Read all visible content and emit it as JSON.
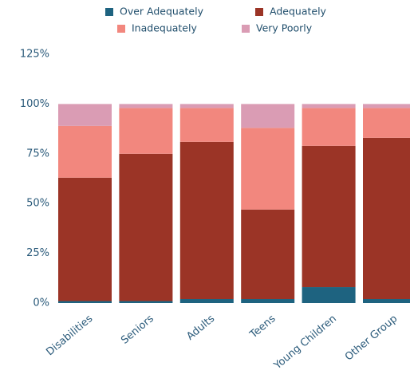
{
  "chart_data": {
    "type": "stacked-bar",
    "categories": [
      "Disabilities",
      "Seniors",
      "Adults",
      "Teens",
      "Young Children",
      "Other Group"
    ],
    "series": [
      {
        "name": "Over Adequately",
        "color": "#1e6380",
        "values": [
          1,
          1,
          2,
          2,
          8,
          2
        ]
      },
      {
        "name": "Adequately",
        "color": "#9b3426",
        "values": [
          62,
          74,
          79,
          45,
          71,
          81
        ]
      },
      {
        "name": "Inadequately",
        "color": "#f2877e",
        "values": [
          26,
          23,
          17,
          41,
          19,
          15
        ]
      },
      {
        "name": "Very Poorly",
        "color": "#da9cb4",
        "values": [
          11,
          2,
          2,
          12,
          2,
          2
        ]
      }
    ],
    "ylim": [
      0,
      125
    ],
    "yticks": [
      {
        "value": 0,
        "label": "0%"
      },
      {
        "value": 25,
        "label": "25%"
      },
      {
        "value": 50,
        "label": "50%"
      },
      {
        "value": 75,
        "label": "75%"
      },
      {
        "value": 100,
        "label": "100%"
      },
      {
        "value": 125,
        "label": "125%"
      }
    ],
    "grid": false
  }
}
